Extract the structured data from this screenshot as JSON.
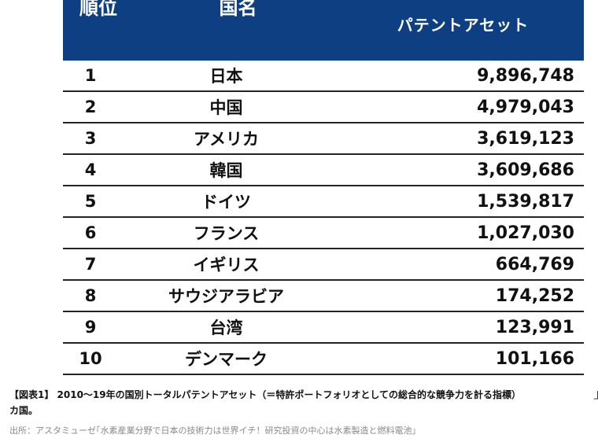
{
  "table": {
    "headers": {
      "rank": "順位",
      "country": "国名",
      "value": "パテントアセット"
    },
    "rows": [
      {
        "rank": "1",
        "country": "日本",
        "value": "9,896,748"
      },
      {
        "rank": "2",
        "country": "中国",
        "value": "4,979,043"
      },
      {
        "rank": "3",
        "country": "アメリカ",
        "value": "3,619,123"
      },
      {
        "rank": "4",
        "country": "韓国",
        "value": "3,609,686"
      },
      {
        "rank": "5",
        "country": "ドイツ",
        "value": "1,539,817"
      },
      {
        "rank": "6",
        "country": "フランス",
        "value": "1,027,030"
      },
      {
        "rank": "7",
        "country": "イギリス",
        "value": "664,769"
      },
      {
        "rank": "8",
        "country": "サウジアラビア",
        "value": "174,252"
      },
      {
        "rank": "9",
        "country": "台湾",
        "value": "123,991"
      },
      {
        "rank": "10",
        "country": "デンマーク",
        "value": "101,166"
      }
    ]
  },
  "caption": {
    "line1": "【図表1】 2010〜19年の国別トータルパテントアセット（＝特許ポートフォリオとしての総合的な競争力を計る指標）",
    "line1_trail": "上",
    "line2": "カ国。"
  },
  "source": "出所：アスタミューゼ｢水素産業分野で日本の技術力は世界イチ！研究投資の中心は水素製造と燃料電池｣",
  "colors": {
    "header_bg": "#0d3f82",
    "header_text": "#ffffff",
    "row_border": "#222222",
    "source_text": "#8a8a8a"
  }
}
